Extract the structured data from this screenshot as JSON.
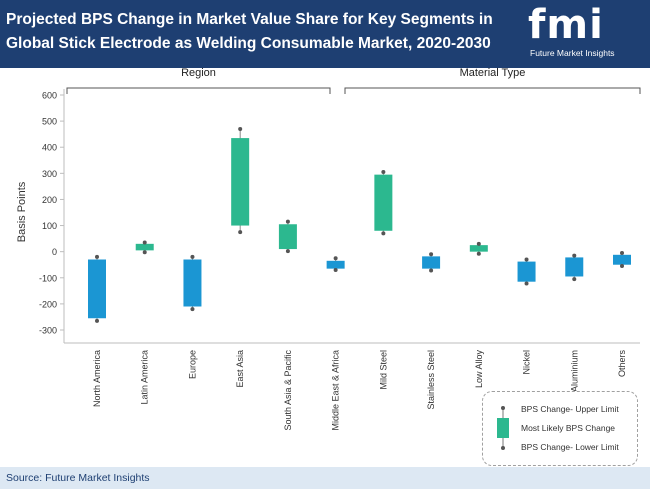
{
  "header": {
    "title": "Projected BPS Change in Market Value Share for Key Segments in Global Stick Electrode as Welding Consumable Market, 2020-2030",
    "logo_text": "fmi",
    "logo_subtitle": "Future Market Insights"
  },
  "footer": {
    "source": "Source: Future Market Insights"
  },
  "colors": {
    "header_bg": "#1e3f72",
    "blue_box": "#1b96d3",
    "green_box": "#2cb88f"
  },
  "chart_data": {
    "type": "box",
    "title": "",
    "ylabel": "Basis Points",
    "ylim": [
      -300,
      600
    ],
    "yticks": [
      600,
      500,
      400,
      300,
      200,
      100,
      0,
      -100,
      -200,
      -300
    ],
    "groups": [
      {
        "label": "Region",
        "categories": [
          "North America",
          "Latin America",
          "Europe",
          "East Asia",
          "South Asia & Pacific",
          "Middle East & Africa"
        ]
      },
      {
        "label": "Material Type",
        "categories": [
          "Mild Steel",
          "Stainless Steel",
          "Low Alloy",
          "Nickel",
          "Aluminium",
          "Others"
        ]
      }
    ],
    "series": [
      {
        "category": "North America",
        "upper": -20,
        "box_top": -30,
        "box_bottom": -255,
        "lower": -265,
        "color": "blue"
      },
      {
        "category": "Latin America",
        "upper": 35,
        "box_top": 30,
        "box_bottom": 5,
        "lower": -2,
        "color": "green"
      },
      {
        "category": "Europe",
        "upper": -20,
        "box_top": -30,
        "box_bottom": -210,
        "lower": -220,
        "color": "blue"
      },
      {
        "category": "East Asia",
        "upper": 470,
        "box_top": 435,
        "box_bottom": 100,
        "lower": 75,
        "color": "green"
      },
      {
        "category": "South Asia & Pacific",
        "upper": 115,
        "box_top": 105,
        "box_bottom": 10,
        "lower": 2,
        "color": "green"
      },
      {
        "category": "Middle East & Africa",
        "upper": -25,
        "box_top": -35,
        "box_bottom": -65,
        "lower": -70,
        "color": "blue"
      },
      {
        "category": "Mild Steel",
        "upper": 305,
        "box_top": 295,
        "box_bottom": 80,
        "lower": 70,
        "color": "green"
      },
      {
        "category": "Stainless Steel",
        "upper": -10,
        "box_top": -18,
        "box_bottom": -65,
        "lower": -72,
        "color": "blue"
      },
      {
        "category": "Low Alloy",
        "upper": 30,
        "box_top": 25,
        "box_bottom": 0,
        "lower": -8,
        "color": "green"
      },
      {
        "category": "Nickel",
        "upper": -30,
        "box_top": -38,
        "box_bottom": -115,
        "lower": -122,
        "color": "blue"
      },
      {
        "category": "Aluminium",
        "upper": -15,
        "box_top": -22,
        "box_bottom": -95,
        "lower": -105,
        "color": "blue"
      },
      {
        "category": "Others",
        "upper": -5,
        "box_top": -12,
        "box_bottom": -50,
        "lower": -55,
        "color": "blue"
      }
    ],
    "legend": {
      "position": "bottom-right",
      "items": [
        "BPS Change- Upper Limit",
        "Most Likely BPS Change",
        "BPS Change- Lower Limit"
      ]
    },
    "grid": false
  }
}
